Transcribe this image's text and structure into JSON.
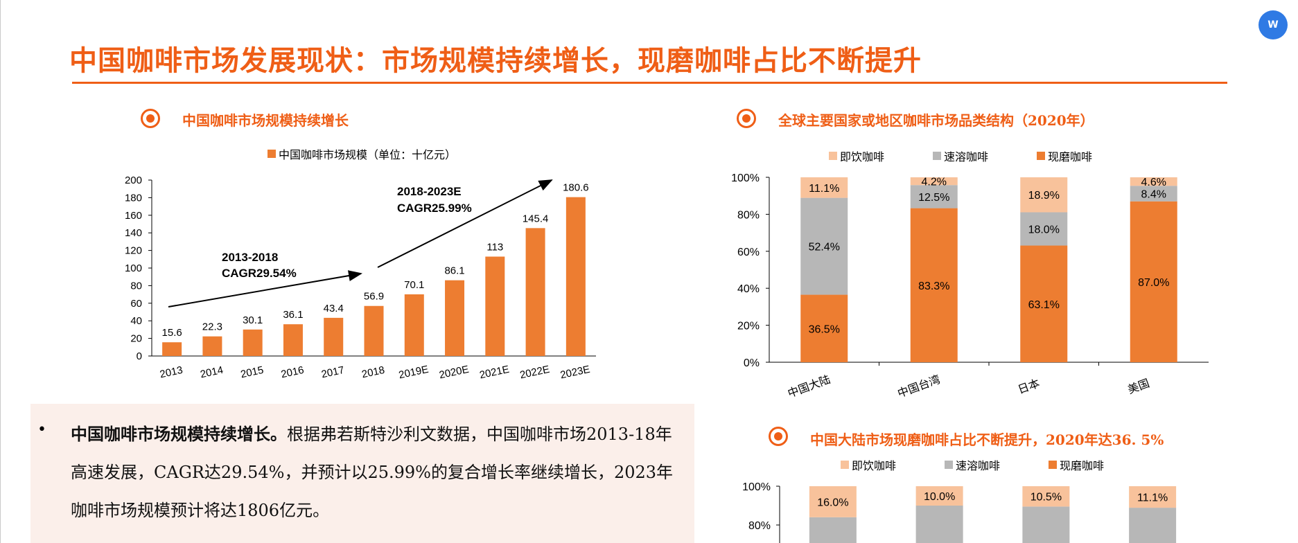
{
  "title": "中国咖啡市场发展现状：市场规模持续增长，现磨咖啡占比不断提升",
  "section_left": "中国咖啡市场规模持续增长",
  "section_right": "全球主要国家或地区咖啡市场品类结构（2020年）",
  "section_bottom_right": "中国大陆市场现磨咖啡占比不断提升，2020年达36. 5%",
  "paragraph": {
    "bold_lead": "中国咖啡市场规模持续增长。",
    "body": "根据弗若斯特沙利文数据，中国咖啡市场2013-18年高速发展，CAGR达29.54%，并预计以25.99%的复合增长率继续增长，2023年咖啡市场规模预计将达1806亿元。"
  },
  "colors": {
    "accent": "#ef5e16",
    "bar": "#ed7d31",
    "ready_to_drink": "#f8c29b",
    "instant": "#b7b7b7",
    "freshly_ground": "#ed7d31",
    "text_bg": "#fbefea",
    "tool_icon": "#2f7ae4"
  },
  "tool_icon": "word-export-icon",
  "chart_data": [
    {
      "type": "bar",
      "legend": "中国咖啡市场规模（单位：十亿元）",
      "legend_position": "top",
      "categories": [
        "2013",
        "2014",
        "2015",
        "2016",
        "2017",
        "2018",
        "2019E",
        "2020E",
        "2021E",
        "2022E",
        "2023E"
      ],
      "values": [
        15.6,
        22.3,
        30.1,
        36.1,
        43.4,
        56.9,
        70.1,
        86.1,
        113,
        145.4,
        180.6
      ],
      "value_labels": [
        "15.6",
        "22.3",
        "30.1",
        "36.1",
        "43.4",
        "56.9",
        "70.1",
        "86.1",
        "113",
        "145.4",
        "180.6"
      ],
      "yticks": [
        "0",
        "20",
        "40",
        "60",
        "80",
        "100",
        "120",
        "140",
        "160",
        "180",
        "200"
      ],
      "ylim": [
        0,
        200
      ],
      "annotations": [
        {
          "line1": "2013-2018",
          "line2": "CAGR29.54%"
        },
        {
          "line1": "2018-2023E",
          "line2": "CAGR25.99%"
        }
      ]
    },
    {
      "type": "bar",
      "stacked": true,
      "percent": true,
      "categories": [
        "中国大陆",
        "中国台湾",
        "日本",
        "美国"
      ],
      "series": [
        {
          "name": "现磨咖啡",
          "values": [
            36.5,
            83.3,
            63.1,
            87.0
          ],
          "labels": [
            "36.5%",
            "83.3%",
            "63.1%",
            "87.0%"
          ]
        },
        {
          "name": "速溶咖啡",
          "values": [
            52.4,
            12.5,
            18.0,
            8.4
          ],
          "labels": [
            "52.4%",
            "12.5%",
            "18.0%",
            "8.4%"
          ]
        },
        {
          "name": "即饮咖啡",
          "values": [
            11.1,
            4.2,
            18.9,
            4.6
          ],
          "labels": [
            "11.1%",
            "4.2%",
            "18.9%",
            "4.6%"
          ]
        }
      ],
      "legend_order": [
        "即饮咖啡",
        "速溶咖啡",
        "现磨咖啡"
      ],
      "yticks": [
        "0%",
        "20%",
        "40%",
        "60%",
        "80%",
        "100%"
      ],
      "ylim": [
        0,
        100
      ]
    },
    {
      "type": "bar",
      "stacked": true,
      "percent": true,
      "partial_view": true,
      "series": [
        {
          "name": "即饮咖啡",
          "values": [
            16.0,
            10.0,
            10.5,
            11.1
          ],
          "labels": [
            "16.0%",
            "10.0%",
            "10.5%",
            "11.1%"
          ]
        },
        {
          "name": "速溶咖啡"
        },
        {
          "name": "现磨咖啡"
        }
      ],
      "legend_order": [
        "即饮咖啡",
        "速溶咖啡",
        "现磨咖啡"
      ],
      "yticks": [
        "80%",
        "100%"
      ],
      "ylim": [
        0,
        100
      ]
    }
  ]
}
